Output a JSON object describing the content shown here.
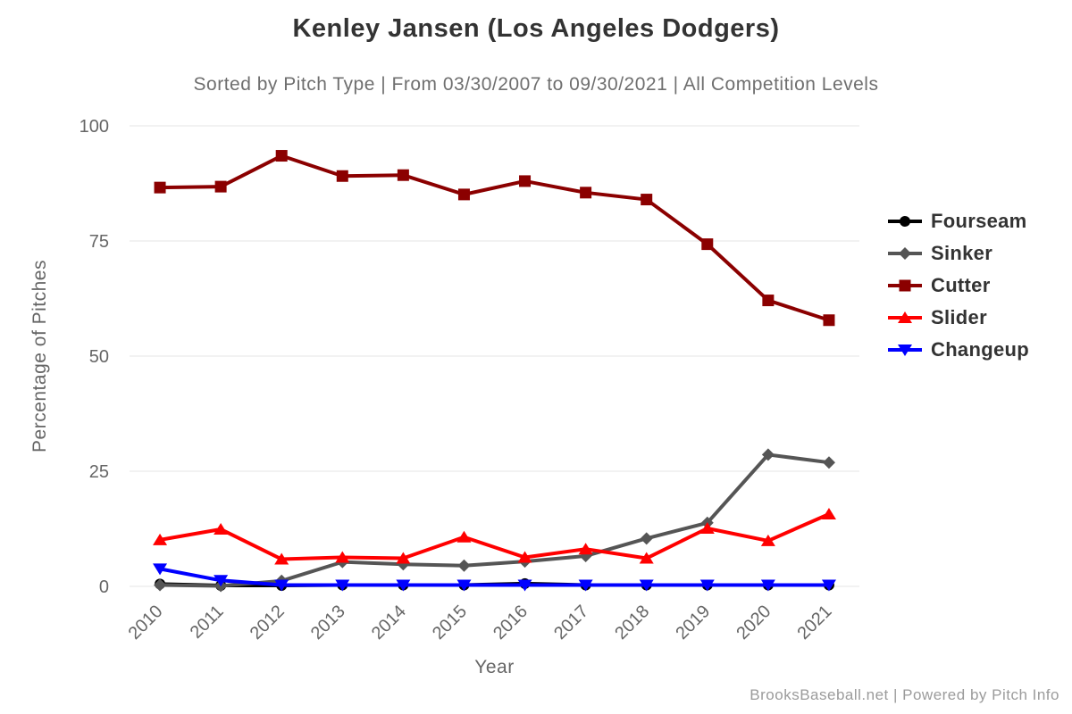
{
  "chart_data": {
    "type": "line",
    "title": "Kenley Jansen (Los Angeles Dodgers)",
    "subtitle": "Sorted by Pitch Type | From 03/30/2007 to 09/30/2021 | All Competition Levels",
    "xlabel": "Year",
    "ylabel": "Percentage of Pitches",
    "credit": "BrooksBaseball.net | Powered by Pitch Info",
    "categories": [
      "2010",
      "2011",
      "2012",
      "2013",
      "2014",
      "2015",
      "2016",
      "2017",
      "2018",
      "2019",
      "2020",
      "2021"
    ],
    "yticks": [
      0,
      25,
      50,
      75,
      100
    ],
    "ylim": [
      0,
      100
    ],
    "grid": "horizontal",
    "legend_position": "right",
    "grid_color": "#e6e6e6",
    "tick_label_color": "#666666",
    "series": [
      {
        "name": "Fourseam",
        "color": "#000000",
        "marker": "circle",
        "values": [
          0.5,
          0.2,
          0.2,
          0.3,
          0.3,
          0.3,
          0.6,
          0.3,
          0.3,
          0.3,
          0.3,
          0.3
        ]
      },
      {
        "name": "Sinker",
        "color": "#555555",
        "marker": "diamond",
        "values": [
          0.3,
          0.1,
          1.2,
          5.3,
          4.8,
          4.5,
          5.4,
          6.6,
          10.4,
          13.8,
          28.6,
          26.9
        ]
      },
      {
        "name": "Cutter",
        "color": "#8b0000",
        "marker": "square",
        "values": [
          86.6,
          86.8,
          93.5,
          89.1,
          89.3,
          85.1,
          88.0,
          85.5,
          84.0,
          74.3,
          62.1,
          57.8
        ]
      },
      {
        "name": "Slider",
        "color": "#ff0000",
        "marker": "triangle-up",
        "values": [
          10.1,
          12.4,
          5.9,
          6.3,
          6.1,
          10.7,
          6.3,
          8.1,
          6.1,
          12.6,
          9.9,
          15.7
        ]
      },
      {
        "name": "Changeup",
        "color": "#0000ff",
        "marker": "triangle-down",
        "values": [
          3.8,
          1.3,
          0.3,
          0.3,
          0.3,
          0.3,
          0.3,
          0.3,
          0.3,
          0.3,
          0.3,
          0.3
        ]
      }
    ]
  }
}
